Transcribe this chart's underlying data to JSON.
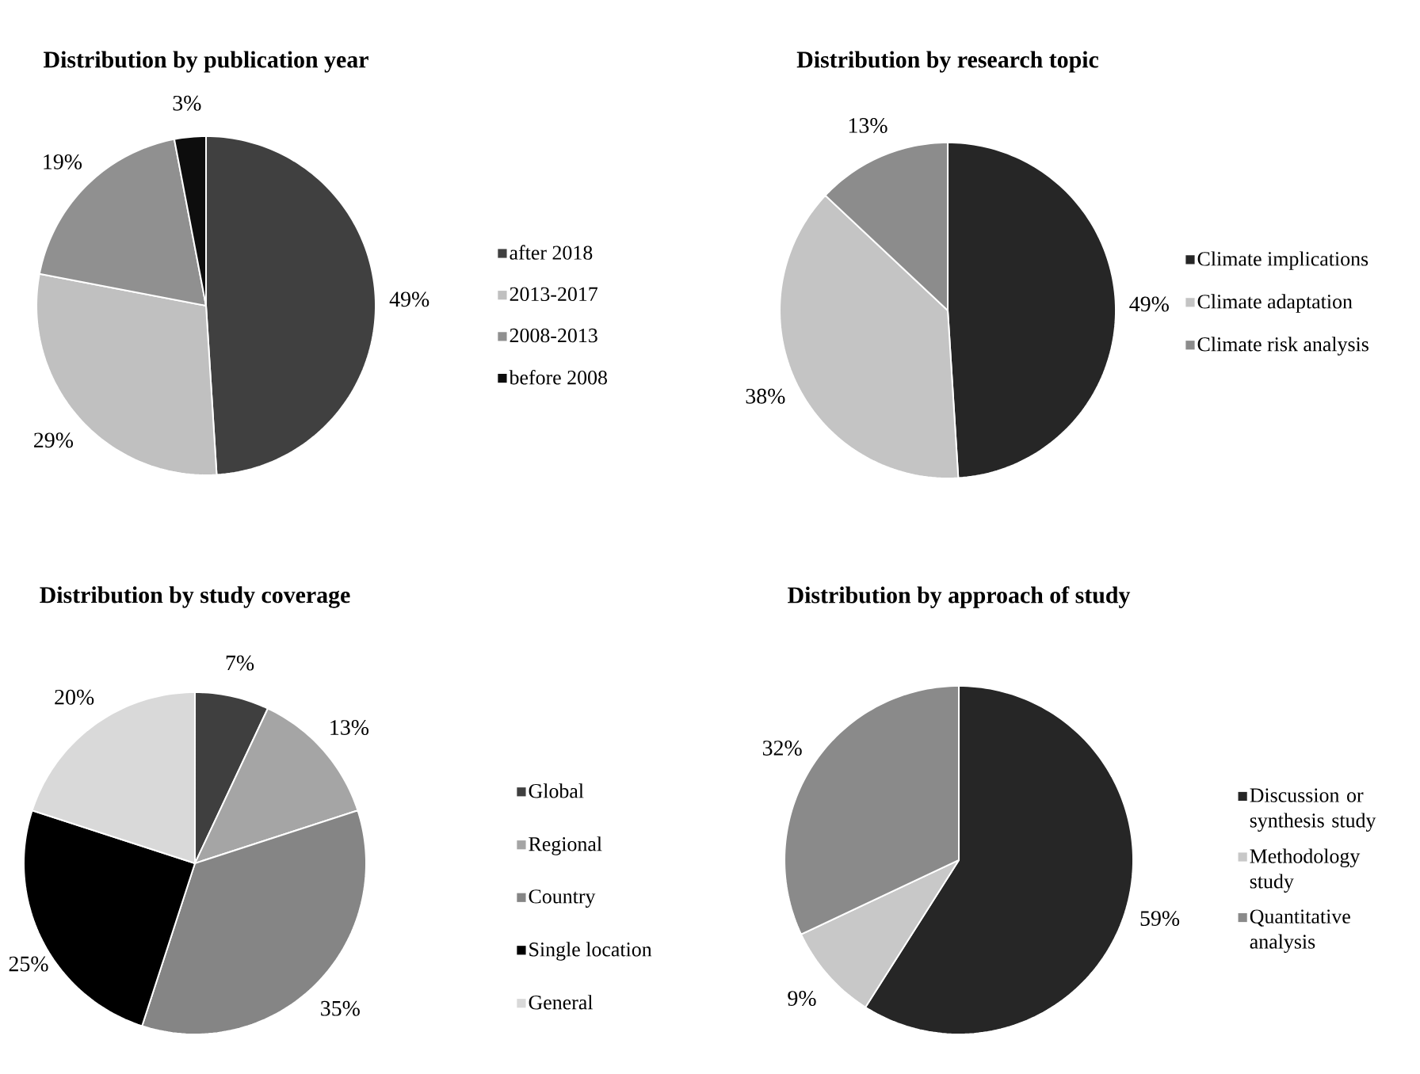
{
  "chart_data": [
    {
      "type": "pie",
      "title": "Distribution by publication year",
      "categories": [
        "after 2018",
        "2013-2017",
        "2008-2013",
        "before 2008"
      ],
      "values": [
        49,
        29,
        19,
        3
      ],
      "value_labels": [
        "49%",
        "29%",
        "19%",
        "3%"
      ],
      "colors": [
        "#404040",
        "#c0c0c0",
        "#909090",
        "#0d0d0d"
      ],
      "legend": "right"
    },
    {
      "type": "pie",
      "title": "Distribution by research topic",
      "categories": [
        "Climate implications",
        "Climate adaptation",
        "Climate risk analysis"
      ],
      "values": [
        49,
        38,
        13
      ],
      "value_labels": [
        "49%",
        "38%",
        "13%"
      ],
      "colors": [
        "#262626",
        "#c4c4c4",
        "#8c8c8c"
      ],
      "legend": "right"
    },
    {
      "type": "pie",
      "title": "Distribution by study coverage",
      "categories": [
        "Global",
        "Regional",
        "Country",
        "Single location",
        "General"
      ],
      "values": [
        7,
        13,
        35,
        25,
        20
      ],
      "value_labels": [
        "7%",
        "13%",
        "35%",
        "25%",
        "20%"
      ],
      "colors": [
        "#3f3f3f",
        "#a5a5a5",
        "#858585",
        "#000000",
        "#d9d9d9"
      ],
      "legend": "right"
    },
    {
      "type": "pie",
      "title": "Distribution by approach of study",
      "categories": [
        "Discussion or synthesis study",
        "Methodology study",
        "Quantitative analysis"
      ],
      "values": [
        59,
        9,
        32
      ],
      "value_labels": [
        "59%",
        "9%",
        "32%"
      ],
      "colors": [
        "#262626",
        "#c8c8c8",
        "#8a8a8a"
      ],
      "legend": "right"
    }
  ]
}
